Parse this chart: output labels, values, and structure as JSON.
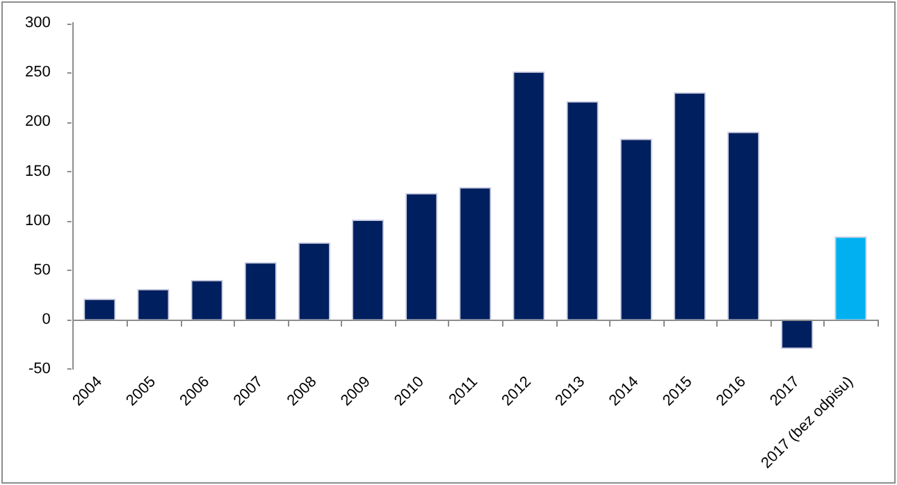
{
  "chart_data": {
    "type": "bar",
    "categories": [
      "2004",
      "2005",
      "2006",
      "2007",
      "2008",
      "2009",
      "2010",
      "2011",
      "2012",
      "2013",
      "2014",
      "2015",
      "2016",
      "2017",
      "2017 (bez odpisu)"
    ],
    "values": [
      21,
      31,
      40,
      58,
      78,
      101,
      128,
      134,
      251,
      221,
      183,
      230,
      190,
      -30,
      84
    ],
    "colors": [
      "#001f5f",
      "#001f5f",
      "#001f5f",
      "#001f5f",
      "#001f5f",
      "#001f5f",
      "#001f5f",
      "#001f5f",
      "#001f5f",
      "#001f5f",
      "#001f5f",
      "#001f5f",
      "#001f5f",
      "#001f5f",
      "#00b0f0"
    ],
    "ylim": [
      -50,
      300
    ],
    "yticks": [
      -50,
      0,
      50,
      100,
      150,
      200,
      250,
      300
    ],
    "grid": false,
    "legend": false,
    "ref_lines": [
      {
        "axis": "y",
        "value": 0,
        "color": "#8c8c8c"
      }
    ]
  }
}
